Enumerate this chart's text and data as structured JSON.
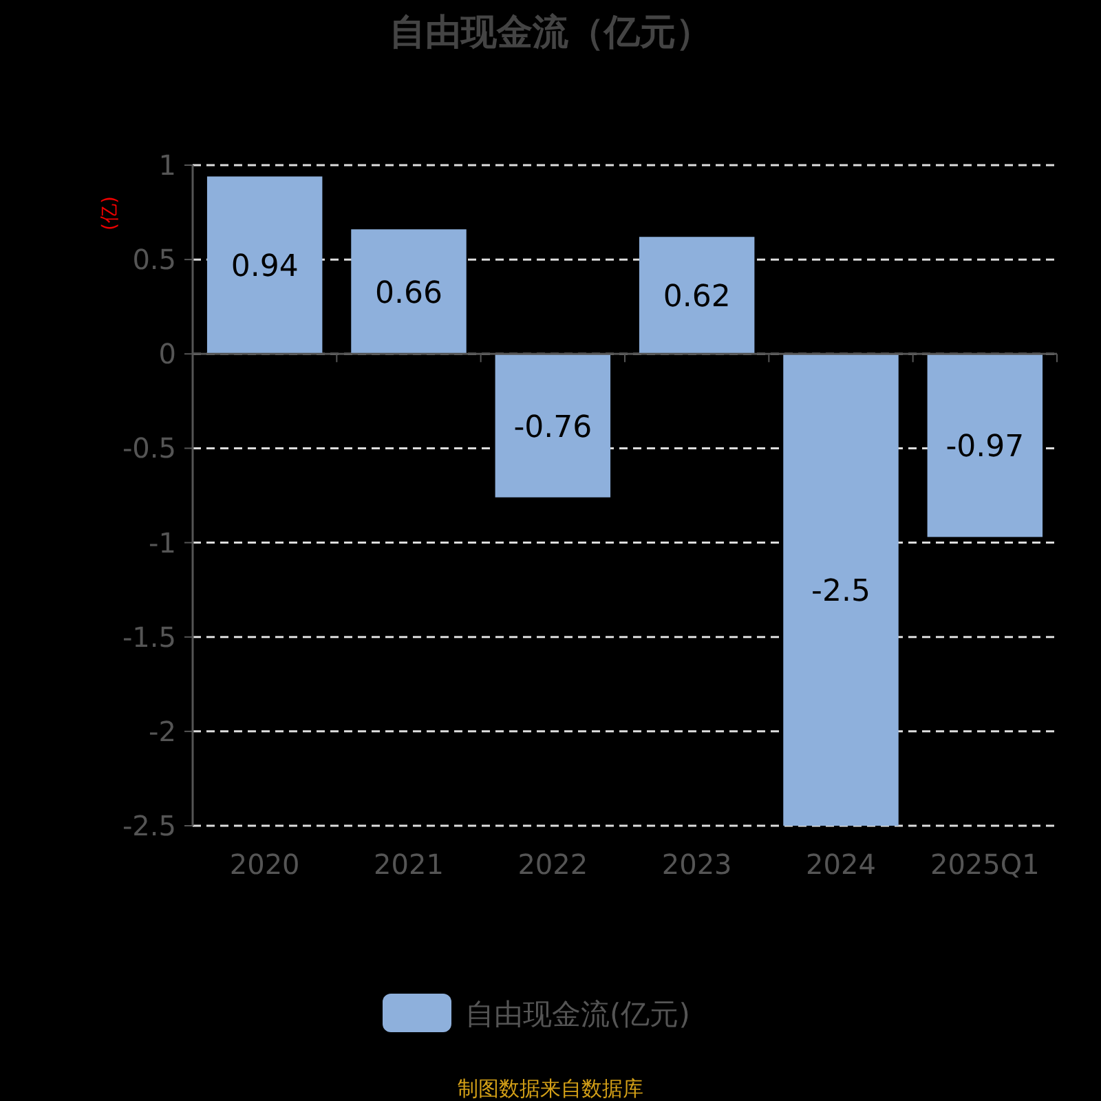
{
  "chart_data": {
    "type": "bar",
    "title": "自由现金流（亿元）",
    "ylabel": "(亿)",
    "categories": [
      "2020",
      "2021",
      "2022",
      "2023",
      "2024",
      "2025Q1"
    ],
    "series": [
      {
        "name": "自由现金流(亿元)",
        "color": "#8eb0dc",
        "values": [
          0.94,
          0.66,
          -0.76,
          0.62,
          -2.5,
          -0.97
        ]
      }
    ],
    "ylim": [
      -2.5,
      1
    ],
    "yticks": [
      -2.5,
      -2,
      -1.5,
      -1,
      -0.5,
      0,
      0.5,
      1
    ],
    "grid": "y",
    "legend": "bottom",
    "data_labels": true,
    "annotations": [
      "制图数据来自数据库"
    ]
  }
}
